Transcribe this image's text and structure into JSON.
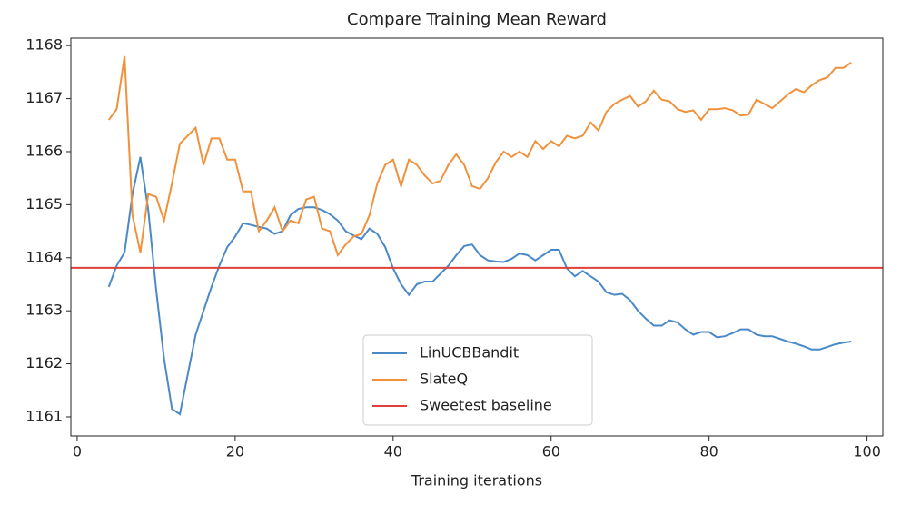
{
  "chart_data": {
    "type": "line",
    "title": "Compare Training Mean Reward",
    "xlabel": "Training iterations",
    "xlim": [
      -0.8,
      102.0
    ],
    "ylim": [
      1160.64,
      1168.14
    ],
    "xticks": [
      0,
      20,
      40,
      60,
      80,
      100
    ],
    "yticks": [
      1161,
      1162,
      1163,
      1164,
      1165,
      1166,
      1167,
      1168
    ],
    "legend": "lower center",
    "x": [
      4,
      5,
      6,
      7,
      8,
      9,
      10,
      11,
      12,
      13,
      14,
      15,
      16,
      17,
      18,
      19,
      20,
      21,
      22,
      23,
      24,
      25,
      26,
      27,
      28,
      29,
      30,
      31,
      32,
      33,
      34,
      35,
      36,
      37,
      38,
      39,
      40,
      41,
      42,
      43,
      44,
      45,
      46,
      47,
      48,
      49,
      50,
      51,
      52,
      53,
      54,
      55,
      56,
      57,
      58,
      59,
      60,
      61,
      62,
      63,
      64,
      65,
      66,
      67,
      68,
      69,
      70,
      71,
      72,
      73,
      74,
      75,
      76,
      77,
      78,
      79,
      80,
      81,
      82,
      83,
      84,
      85,
      86,
      87,
      88,
      89,
      90,
      91,
      92,
      93,
      94,
      95,
      96,
      97,
      98
    ],
    "series": [
      {
        "name": "LinUCBBandit",
        "color": "#4a89c8",
        "values": [
          1163.45,
          1163.85,
          1164.1,
          1165.2,
          1165.9,
          1164.9,
          1163.4,
          1162.1,
          1161.15,
          1161.05,
          1161.8,
          1162.55,
          1163.0,
          1163.45,
          1163.85,
          1164.2,
          1164.4,
          1164.65,
          1164.62,
          1164.58,
          1164.55,
          1164.45,
          1164.5,
          1164.8,
          1164.92,
          1164.95,
          1164.95,
          1164.9,
          1164.82,
          1164.7,
          1164.5,
          1164.42,
          1164.35,
          1164.55,
          1164.45,
          1164.2,
          1163.8,
          1163.5,
          1163.3,
          1163.5,
          1163.55,
          1163.55,
          1163.7,
          1163.85,
          1164.05,
          1164.22,
          1164.25,
          1164.05,
          1163.95,
          1163.93,
          1163.92,
          1163.98,
          1164.08,
          1164.05,
          1163.95,
          1164.05,
          1164.15,
          1164.15,
          1163.8,
          1163.65,
          1163.75,
          1163.65,
          1163.55,
          1163.35,
          1163.3,
          1163.32,
          1163.2,
          1163.0,
          1162.85,
          1162.72,
          1162.72,
          1162.82,
          1162.78,
          1162.65,
          1162.55,
          1162.6,
          1162.6,
          1162.5,
          1162.52,
          1162.58,
          1162.65,
          1162.65,
          1162.55,
          1162.52,
          1162.52,
          1162.47,
          1162.42,
          1162.38,
          1162.33,
          1162.27,
          1162.27,
          1162.32,
          1162.37,
          1162.4,
          1162.42
        ]
      },
      {
        "name": "SlateQ",
        "color": "#f0913c",
        "values": [
          1166.6,
          1166.8,
          1167.8,
          1164.8,
          1164.1,
          1165.2,
          1165.15,
          1164.7,
          1165.4,
          1166.15,
          1166.3,
          1166.45,
          1165.75,
          1166.25,
          1166.25,
          1165.85,
          1165.85,
          1165.25,
          1165.25,
          1164.5,
          1164.7,
          1164.95,
          1164.5,
          1164.7,
          1164.65,
          1165.1,
          1165.15,
          1164.55,
          1164.5,
          1164.05,
          1164.25,
          1164.4,
          1164.45,
          1164.8,
          1165.4,
          1165.75,
          1165.85,
          1165.35,
          1165.85,
          1165.75,
          1165.55,
          1165.4,
          1165.45,
          1165.75,
          1165.95,
          1165.75,
          1165.35,
          1165.3,
          1165.5,
          1165.8,
          1166.0,
          1165.9,
          1166.0,
          1165.9,
          1166.2,
          1166.05,
          1166.2,
          1166.1,
          1166.3,
          1166.25,
          1166.3,
          1166.55,
          1166.4,
          1166.75,
          1166.9,
          1166.98,
          1167.05,
          1166.85,
          1166.95,
          1167.15,
          1166.98,
          1166.95,
          1166.8,
          1166.75,
          1166.78,
          1166.6,
          1166.8,
          1166.8,
          1166.82,
          1166.78,
          1166.68,
          1166.7,
          1166.98,
          1166.9,
          1166.82,
          1166.95,
          1167.08,
          1167.18,
          1167.12,
          1167.25,
          1167.35,
          1167.4,
          1167.58,
          1167.58,
          1167.68
        ]
      }
    ],
    "baseline": {
      "name": "Sweetest baseline",
      "color": "#e0403a",
      "value": 1163.81
    }
  }
}
